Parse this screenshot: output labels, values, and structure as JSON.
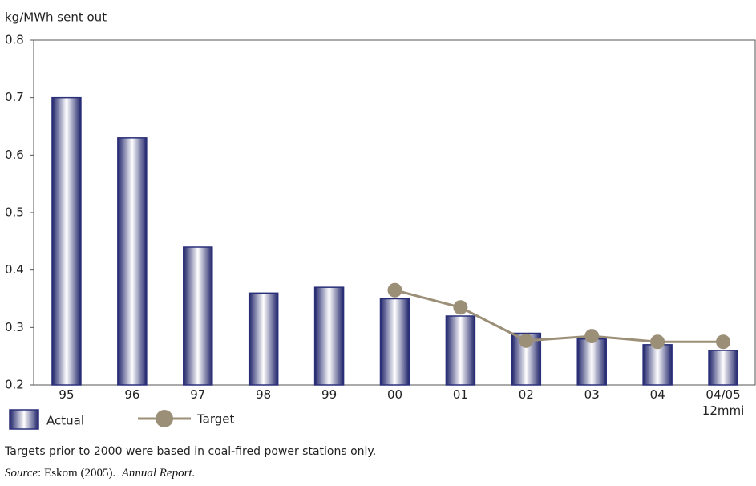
{
  "chart_data": {
    "type": "bar",
    "y_label": "kg/MWh sent out",
    "categories": [
      "95",
      "96",
      "97",
      "98",
      "99",
      "00",
      "01",
      "02",
      "03",
      "04",
      "04/05\n12mmi"
    ],
    "series": [
      {
        "name": "Actual",
        "color": "#2a2f7a",
        "values": [
          0.7,
          0.63,
          0.44,
          0.36,
          0.37,
          0.35,
          0.32,
          0.29,
          0.28,
          0.27,
          0.26
        ]
      },
      {
        "name": "Target",
        "color": "#9c8f78",
        "type": "line",
        "values": [
          null,
          null,
          null,
          null,
          null,
          0.365,
          0.335,
          0.277,
          0.285,
          0.275,
          0.275
        ]
      }
    ],
    "ylim": [
      0.2,
      0.8
    ],
    "yticks": [
      0.2,
      0.3,
      0.4,
      0.5,
      0.6,
      0.7,
      0.8
    ],
    "grid": false,
    "note": "Targets prior to 2000 were based in coal-fired power stations only.",
    "source": {
      "label": "Source",
      "text": ": Eskom (2005).",
      "publication": "Annual Report."
    }
  }
}
